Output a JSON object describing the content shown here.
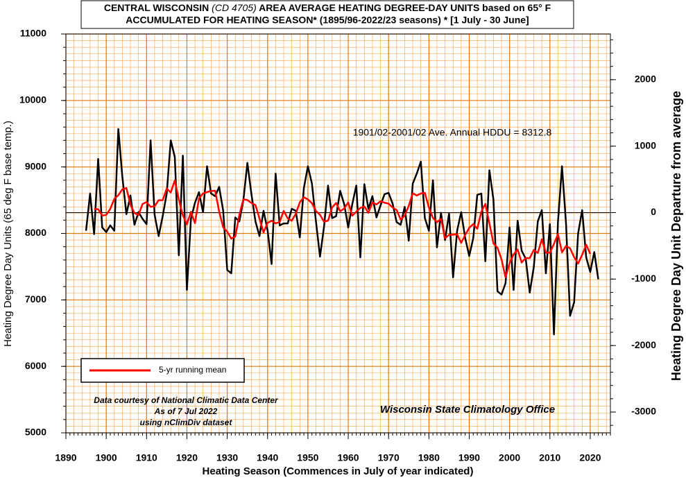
{
  "chart_data": {
    "type": "line",
    "title": {
      "line1": [
        "CENTRAL WISCONSIN",
        "(CD 4705)",
        "AREA AVERAGE HEATING DEGREE-DAY UNITS based on 65° F"
      ],
      "line2": "ACCUMULATED FOR HEATING SEASON*  (1895/96-2022/23 seasons) * [1 July - 30 June]"
    },
    "x_label": "Heating Season (Commences in July of year indicated)",
    "y_label": "Heating Degree Day Units (65 deg F base temp.)",
    "y2_label": "Heating Degree Day Unit Departure from average",
    "annotation": "1901/02-2001/02 Ave. Annual HDDU = 8312.8",
    "reference_value": 8312.8,
    "notes": [
      "Data courtesy of National Climatic Data Center",
      "As of 7 Jul 2022",
      "using nClimDiv dataset"
    ],
    "credit": "Wisconsin State Climatology Office",
    "x": [
      1895,
      1896,
      1897,
      1898,
      1899,
      1900,
      1901,
      1902,
      1903,
      1904,
      1905,
      1906,
      1907,
      1908,
      1909,
      1910,
      1911,
      1912,
      1913,
      1914,
      1915,
      1916,
      1917,
      1918,
      1919,
      1920,
      1921,
      1922,
      1923,
      1924,
      1925,
      1926,
      1927,
      1928,
      1929,
      1930,
      1931,
      1932,
      1933,
      1934,
      1935,
      1936,
      1937,
      1938,
      1939,
      1940,
      1941,
      1942,
      1943,
      1944,
      1945,
      1946,
      1947,
      1948,
      1949,
      1950,
      1951,
      1952,
      1953,
      1954,
      1955,
      1956,
      1957,
      1958,
      1959,
      1960,
      1961,
      1962,
      1963,
      1964,
      1965,
      1966,
      1967,
      1968,
      1969,
      1970,
      1971,
      1972,
      1973,
      1974,
      1975,
      1976,
      1977,
      1978,
      1979,
      1980,
      1981,
      1982,
      1983,
      1984,
      1985,
      1986,
      1987,
      1988,
      1989,
      1990,
      1991,
      1992,
      1993,
      1994,
      1995,
      1996,
      1997,
      1998,
      1999,
      2000,
      2001,
      2002,
      2003,
      2004,
      2005,
      2006,
      2007,
      2008,
      2009,
      2010,
      2011,
      2012,
      2013,
      2014,
      2015,
      2016,
      2017,
      2018,
      2019,
      2020,
      2021,
      2022
    ],
    "series": [
      {
        "color": "#000000",
        "values": [
          8040,
          8600,
          7990,
          9120,
          8090,
          8020,
          8120,
          8040,
          9570,
          8850,
          8290,
          8570,
          8130,
          8320,
          8220,
          8140,
          9400,
          8280,
          7960,
          8260,
          8600,
          9400,
          9150,
          7670,
          9170,
          7150,
          8220,
          8460,
          8620,
          8320,
          9010,
          8600,
          8560,
          8700,
          8340,
          7450,
          7400,
          8240,
          8180,
          8500,
          9060,
          8590,
          8180,
          7960,
          8340,
          8050,
          7540,
          8900,
          8120,
          8150,
          8150,
          8370,
          8340,
          7940,
          8680,
          9010,
          8750,
          8180,
          7650,
          8100,
          8720,
          8230,
          8260,
          8640,
          8440,
          8090,
          8440,
          8720,
          7640,
          8740,
          8370,
          8560,
          8240,
          8420,
          8590,
          8610,
          8450,
          8170,
          8130,
          8400,
          7890,
          8750,
          8900,
          9080,
          8230,
          8040,
          8800,
          7790,
          8310,
          7900,
          8300,
          7340,
          8040,
          8320,
          7930,
          7660,
          7930,
          8580,
          8600,
          7580,
          8950,
          8510,
          7130,
          7080,
          7250,
          8090,
          7150,
          8190,
          7740,
          7620,
          7110,
          7490,
          8180,
          8350,
          7400,
          8140,
          6480,
          8170,
          9010,
          8150,
          6760,
          6960,
          8000,
          8350,
          7640,
          7420,
          7720,
          7310
        ]
      },
      {
        "name": "5-yr running mean",
        "color": "#ff0000",
        "values": [
          null,
          null,
          8368,
          8364,
          8268,
          8278,
          8368,
          8520,
          8574,
          8664,
          8682,
          8432,
          8306,
          8276,
          8442,
          8472,
          8400,
          8408,
          8500,
          8500,
          8674,
          8616,
          8798,
          8508,
          8272,
          8134,
          8324,
          8154,
          8526,
          8602,
          8622,
          8638,
          8642,
          8330,
          8090,
          8026,
          7922,
          7954,
          8276,
          8514,
          8502,
          8458,
          8426,
          8224,
          8014,
          8158,
          8190,
          8152,
          8172,
          8338,
          8226,
          8190,
          8296,
          8468,
          8544,
          8512,
          8454,
          8338,
          8280,
          8176,
          8192,
          8390,
          8458,
          8332,
          8374,
          8466,
          8266,
          8326,
          8382,
          8406,
          8310,
          8466,
          8436,
          8484,
          8462,
          8448,
          8390,
          8352,
          8208,
          8268,
          8414,
          8604,
          8570,
          8600,
          8610,
          8388,
          8234,
          8168,
          8220,
          7928,
          7978,
          7980,
          7986,
          7858,
          7976,
          8084,
          8140,
          8070,
          8328,
          8444,
          8154,
          7850,
          7784,
          7612,
          7340,
          7552,
          7684,
          7758,
          7562,
          7630,
          7628,
          7750,
          7706,
          7912,
          7710,
          7708,
          7840,
          7990,
          7714,
          7810,
          7776,
          7644,
          7546,
          7678,
          7830,
          7692,
          null,
          null
        ]
      }
    ],
    "xlim": [
      1890,
      2025
    ],
    "xticks": [
      1890,
      1900,
      1910,
      1920,
      1930,
      1940,
      1950,
      1960,
      1970,
      1980,
      1990,
      2000,
      2010,
      2020
    ],
    "ylim": [
      5000,
      11000
    ],
    "yticks": [
      5000,
      6000,
      7000,
      8000,
      9000,
      10000,
      11000
    ],
    "y2lim": [
      -3312.8,
      2687.2
    ],
    "y2ticks": [
      -3000,
      -2000,
      -1000,
      0,
      1000,
      2000
    ],
    "grid": true,
    "grid_color": "#ffa040",
    "minor_xstep": 2,
    "minor_ystep": 100,
    "legend": "lower left"
  }
}
